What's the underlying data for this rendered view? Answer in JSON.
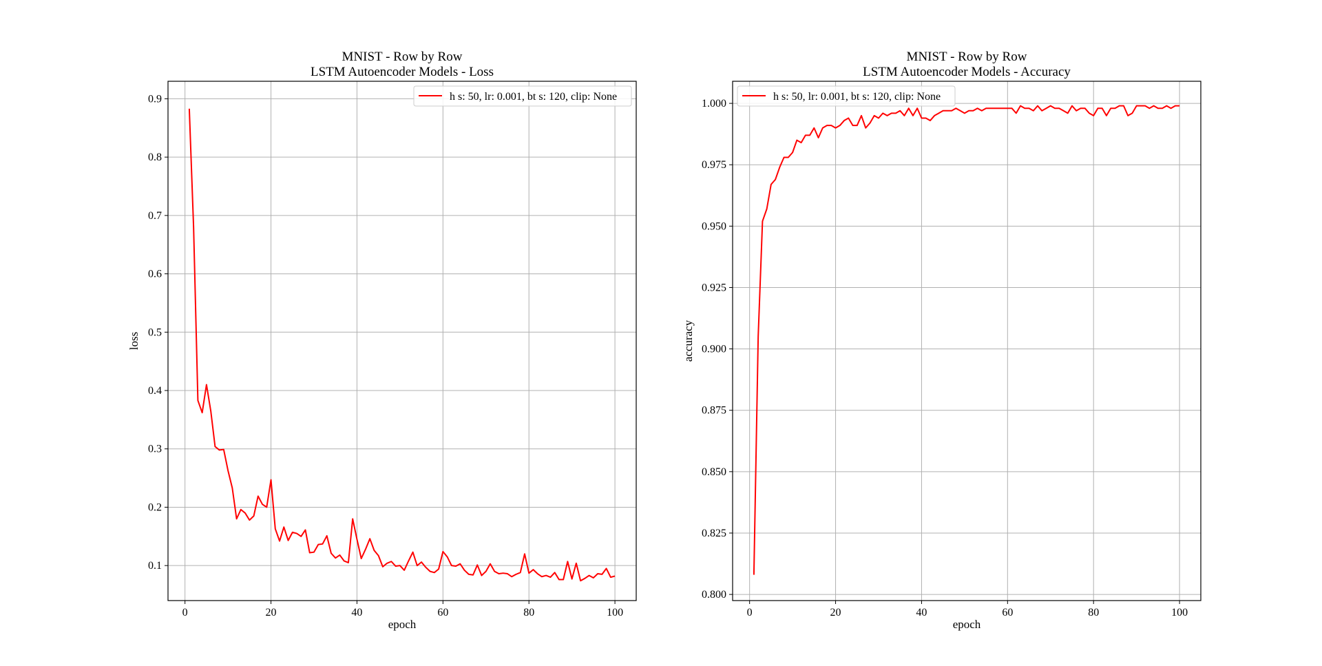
{
  "chart_data": [
    {
      "type": "line",
      "title": "MNIST - Row by Row\nLSTM Autoencoder Models - Loss",
      "xlabel": "epoch",
      "ylabel": "loss",
      "xlim": [
        -3.95,
        104.95
      ],
      "ylim": [
        0.04,
        0.93
      ],
      "xticks": [
        0,
        20,
        40,
        60,
        80,
        100
      ],
      "yticks": [
        0.1,
        0.2,
        0.3,
        0.4,
        0.5,
        0.6,
        0.7,
        0.8,
        0.9
      ],
      "ytick_format": 1,
      "grid": true,
      "legend_position": "upper right",
      "series": [
        {
          "name": "h s: 50, lr: 0.001, bt s: 120, clip: None",
          "color": "#ff0000",
          "x": [
            1,
            2,
            3,
            4,
            5,
            6,
            7,
            8,
            9,
            10,
            11,
            12,
            13,
            14,
            15,
            16,
            17,
            18,
            19,
            20,
            21,
            22,
            23,
            24,
            25,
            26,
            27,
            28,
            29,
            30,
            31,
            32,
            33,
            34,
            35,
            36,
            37,
            38,
            39,
            40,
            41,
            42,
            43,
            44,
            45,
            46,
            47,
            48,
            49,
            50,
            51,
            52,
            53,
            54,
            55,
            56,
            57,
            58,
            59,
            60,
            61,
            62,
            63,
            64,
            65,
            66,
            67,
            68,
            69,
            70,
            71,
            72,
            73,
            74,
            75,
            76,
            77,
            78,
            79,
            80,
            81,
            82,
            83,
            84,
            85,
            86,
            87,
            88,
            89,
            90,
            91,
            92,
            93,
            94,
            95,
            96,
            97,
            98,
            99,
            100
          ],
          "values": [
            0.883,
            0.68,
            0.383,
            0.362,
            0.41,
            0.365,
            0.304,
            0.298,
            0.299,
            0.263,
            0.233,
            0.18,
            0.196,
            0.19,
            0.178,
            0.185,
            0.219,
            0.205,
            0.2,
            0.247,
            0.163,
            0.142,
            0.166,
            0.143,
            0.157,
            0.155,
            0.15,
            0.161,
            0.122,
            0.123,
            0.136,
            0.137,
            0.151,
            0.121,
            0.113,
            0.118,
            0.108,
            0.105,
            0.18,
            0.145,
            0.112,
            0.128,
            0.146,
            0.126,
            0.117,
            0.098,
            0.104,
            0.107,
            0.099,
            0.1,
            0.092,
            0.108,
            0.123,
            0.1,
            0.106,
            0.097,
            0.09,
            0.088,
            0.094,
            0.124,
            0.115,
            0.1,
            0.099,
            0.103,
            0.092,
            0.085,
            0.084,
            0.101,
            0.083,
            0.09,
            0.103,
            0.09,
            0.086,
            0.087,
            0.086,
            0.081,
            0.085,
            0.088,
            0.12,
            0.087,
            0.093,
            0.086,
            0.081,
            0.083,
            0.08,
            0.088,
            0.076,
            0.076,
            0.107,
            0.077,
            0.104,
            0.074,
            0.078,
            0.083,
            0.079,
            0.086,
            0.085,
            0.095,
            0.08,
            0.082
          ]
        }
      ]
    },
    {
      "type": "line",
      "title": "MNIST - Row by Row\nLSTM Autoencoder Models - Accuracy",
      "xlabel": "epoch",
      "ylabel": "accuracy",
      "xlim": [
        -3.95,
        104.95
      ],
      "ylim": [
        0.7975,
        1.009
      ],
      "xticks": [
        0,
        20,
        40,
        60,
        80,
        100
      ],
      "yticks": [
        0.8,
        0.825,
        0.85,
        0.875,
        0.9,
        0.925,
        0.95,
        0.975,
        1.0
      ],
      "ytick_format": 3,
      "grid": true,
      "legend_position": "upper left",
      "series": [
        {
          "name": "h s: 50, lr: 0.001, bt s: 120, clip: None",
          "color": "#ff0000",
          "x": [
            1,
            2,
            3,
            4,
            5,
            6,
            7,
            8,
            9,
            10,
            11,
            12,
            13,
            14,
            15,
            16,
            17,
            18,
            19,
            20,
            21,
            22,
            23,
            24,
            25,
            26,
            27,
            28,
            29,
            30,
            31,
            32,
            33,
            34,
            35,
            36,
            37,
            38,
            39,
            40,
            41,
            42,
            43,
            44,
            45,
            46,
            47,
            48,
            49,
            50,
            51,
            52,
            53,
            54,
            55,
            56,
            57,
            58,
            59,
            60,
            61,
            62,
            63,
            64,
            65,
            66,
            67,
            68,
            69,
            70,
            71,
            72,
            73,
            74,
            75,
            76,
            77,
            78,
            79,
            80,
            81,
            82,
            83,
            84,
            85,
            86,
            87,
            88,
            89,
            90,
            91,
            92,
            93,
            94,
            95,
            96,
            97,
            98,
            99,
            100
          ],
          "values": [
            0.808,
            0.905,
            0.952,
            0.957,
            0.967,
            0.969,
            0.974,
            0.978,
            0.978,
            0.98,
            0.985,
            0.984,
            0.987,
            0.987,
            0.99,
            0.986,
            0.99,
            0.991,
            0.991,
            0.99,
            0.991,
            0.993,
            0.994,
            0.991,
            0.991,
            0.995,
            0.99,
            0.992,
            0.995,
            0.994,
            0.996,
            0.995,
            0.996,
            0.996,
            0.997,
            0.995,
            0.998,
            0.995,
            0.998,
            0.994,
            0.994,
            0.993,
            0.995,
            0.996,
            0.997,
            0.997,
            0.997,
            0.998,
            0.997,
            0.996,
            0.997,
            0.997,
            0.998,
            0.997,
            0.998,
            0.998,
            0.998,
            0.998,
            0.998,
            0.998,
            0.998,
            0.996,
            0.999,
            0.998,
            0.998,
            0.997,
            0.999,
            0.997,
            0.998,
            0.999,
            0.998,
            0.998,
            0.997,
            0.996,
            0.999,
            0.997,
            0.998,
            0.998,
            0.996,
            0.995,
            0.998,
            0.998,
            0.995,
            0.998,
            0.998,
            0.999,
            0.999,
            0.995,
            0.996,
            0.999,
            0.999,
            0.999,
            0.998,
            0.999,
            0.998,
            0.998,
            0.999,
            0.998,
            0.999,
            0.999
          ]
        }
      ]
    }
  ]
}
